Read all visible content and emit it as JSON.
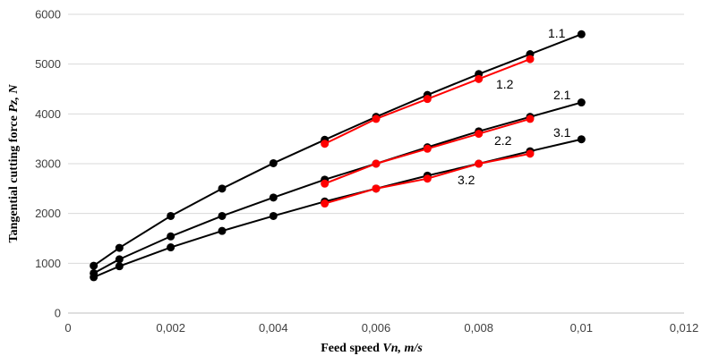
{
  "chart_data": {
    "type": "line",
    "title": "",
    "xlabel_prefix": "Feed speed ",
    "xlabel_var": "Vn, m/s",
    "ylabel_prefix": "Tangential cutting force ",
    "ylabel_var": "Pz, N",
    "xlim": [
      0,
      0.012
    ],
    "ylim": [
      0,
      6000
    ],
    "x_ticks": [
      0,
      0.002,
      0.004,
      0.006,
      0.008,
      0.01,
      0.012
    ],
    "x_tick_labels": [
      "0",
      "0,002",
      "0,004",
      "0,006",
      "0,008",
      "0,01",
      "0,012"
    ],
    "y_ticks": [
      0,
      1000,
      2000,
      3000,
      4000,
      5000,
      6000
    ],
    "y_tick_labels": [
      "0",
      "1000",
      "2000",
      "3000",
      "4000",
      "5000",
      "6000"
    ],
    "grid": "horizontal",
    "series": [
      {
        "name": "1.1",
        "color": "#000000",
        "x": [
          0.0005,
          0.001,
          0.002,
          0.003,
          0.004,
          0.005,
          0.006,
          0.007,
          0.008,
          0.009,
          0.01
        ],
        "y": [
          950,
          1310,
          1950,
          2500,
          3010,
          3480,
          3940,
          4380,
          4800,
          5200,
          5600
        ]
      },
      {
        "name": "1.2",
        "color": "#ff0000",
        "x": [
          0.005,
          0.006,
          0.007,
          0.008,
          0.009
        ],
        "y": [
          3400,
          3900,
          4300,
          4700,
          5100
        ]
      },
      {
        "name": "2.1",
        "color": "#000000",
        "x": [
          0.0005,
          0.001,
          0.002,
          0.003,
          0.004,
          0.005,
          0.006,
          0.007,
          0.008,
          0.009,
          0.01
        ],
        "y": [
          800,
          1080,
          1540,
          1950,
          2320,
          2680,
          3000,
          3330,
          3650,
          3940,
          4230
        ]
      },
      {
        "name": "2.2",
        "color": "#ff0000",
        "x": [
          0.005,
          0.006,
          0.007,
          0.008,
          0.009
        ],
        "y": [
          2600,
          3000,
          3300,
          3600,
          3900
        ]
      },
      {
        "name": "3.1",
        "color": "#000000",
        "x": [
          0.0005,
          0.001,
          0.002,
          0.003,
          0.004,
          0.005,
          0.006,
          0.007,
          0.008,
          0.009,
          0.01
        ],
        "y": [
          720,
          940,
          1320,
          1650,
          1950,
          2240,
          2500,
          2760,
          3000,
          3250,
          3490
        ]
      },
      {
        "name": "3.2",
        "color": "#ff0000",
        "x": [
          0.005,
          0.006,
          0.007,
          0.008,
          0.009
        ],
        "y": [
          2200,
          2500,
          2700,
          3000,
          3200
        ]
      }
    ]
  }
}
